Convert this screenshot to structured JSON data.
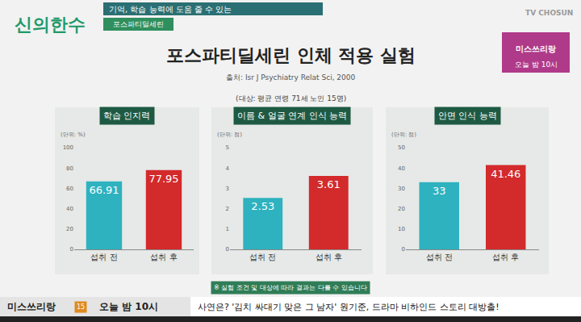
{
  "header": {
    "logo": "신의한수",
    "subtitle": "기억, 학습 능력에 도움 줄 수 있는",
    "tag": "포스파티딜세린",
    "channel": "TV CHOSUN",
    "promo": "미스쓰리랑",
    "promo_time": "오늘 밤 10시"
  },
  "title": "포스파티딜세린 인체 적용 실험",
  "source": "출처: Isr J Psychiatry Relat Sci, 2000",
  "subject": "(대상: 평균 연령 71세 노인 15명)",
  "footnote": "※ 실험 조건 및 대상에 따라 결과는 다를 수 있습니다",
  "ticker": {
    "program": "미스쓰리랑",
    "rating": "15",
    "time": "오늘 밤 10시",
    "text": "사연은? '김치 싸대기 맞은 그 남자' 원기준, 드라마 비하인드 스토리 대방출!"
  },
  "chart_data": [
    {
      "type": "bar",
      "title": "학습 인지력",
      "y_label": "(단위: %)",
      "categories": [
        "섭취 전",
        "섭취 후"
      ],
      "values": [
        66.91,
        77.95
      ],
      "colors": [
        "#2eb2bf",
        "#d32a2c"
      ],
      "ylim": [
        0,
        100
      ],
      "yticks": [
        0,
        20,
        40,
        60,
        80,
        100
      ],
      "data_labels": true,
      "grid": false
    },
    {
      "type": "bar",
      "title": "이름 & 얼굴 연계 인식 능력",
      "y_label": "(단위: 점)",
      "categories": [
        "섭취 전",
        "섭취 후"
      ],
      "values": [
        2.53,
        3.61
      ],
      "colors": [
        "#2eb2bf",
        "#d32a2c"
      ],
      "ylim": [
        0,
        5
      ],
      "yticks": [
        0,
        1,
        2,
        3,
        4,
        5
      ],
      "data_labels": true,
      "grid": false
    },
    {
      "type": "bar",
      "title": "안면 인식 능력",
      "y_label": "(단위: 점)",
      "categories": [
        "섭취 전",
        "섭취 후"
      ],
      "values": [
        33,
        41.46
      ],
      "colors": [
        "#2eb2bf",
        "#d32a2c"
      ],
      "ylim": [
        0,
        50
      ],
      "yticks": [
        0,
        10,
        20,
        30,
        40,
        50
      ],
      "data_labels": true,
      "grid": false
    }
  ]
}
